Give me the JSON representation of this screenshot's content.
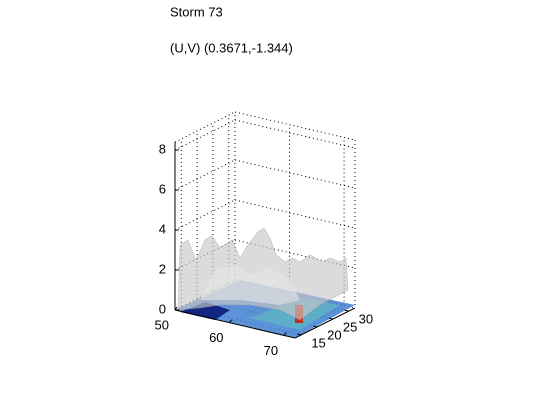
{
  "chart_data": {
    "type": "surface3d",
    "title": "Storm 73",
    "subtitle": "(U,V) (0.3671,-1.344)",
    "xlim": [
      50,
      72
    ],
    "xticks": [
      50,
      60,
      70
    ],
    "ylim": [
      13,
      32
    ],
    "yticks": [
      15,
      20,
      25,
      30
    ],
    "zlim": [
      0,
      8.4
    ],
    "zticks": [
      0,
      2,
      4,
      6,
      8
    ],
    "grid": true
  }
}
